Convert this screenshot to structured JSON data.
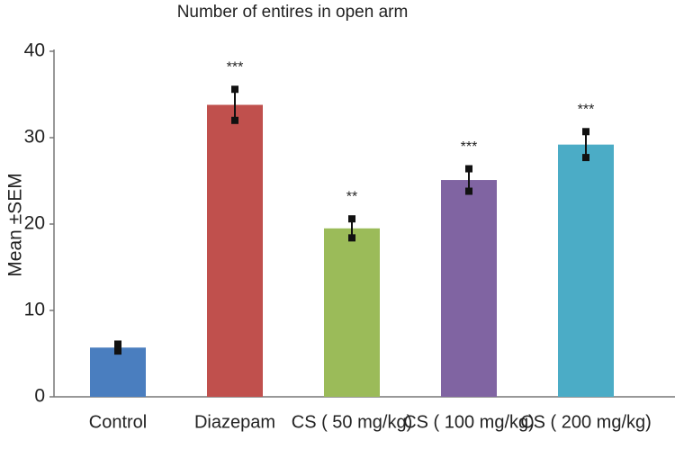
{
  "chart_data": {
    "type": "bar",
    "title": "Number of entires in open arm",
    "ylabel": "Mean ±SEM",
    "categories": [
      "Control",
      "Diazepam",
      "CS ( 50 mg/kg)",
      "CS ( 100 mg/kg)",
      "CS ( 200 mg/kg)"
    ],
    "values": [
      5.7,
      33.8,
      19.5,
      25.1,
      29.2
    ],
    "errors": [
      0.4,
      1.8,
      1.1,
      1.3,
      1.5
    ],
    "annotations": [
      null,
      "***",
      "**",
      "***",
      "***"
    ],
    "colors": [
      "#4a7ebf",
      "#c0504d",
      "#9bbb59",
      "#8064a2",
      "#4bacc6"
    ],
    "ylim": [
      0,
      40
    ],
    "yticks": [
      0,
      10,
      20,
      30,
      40
    ],
    "grid": false
  }
}
